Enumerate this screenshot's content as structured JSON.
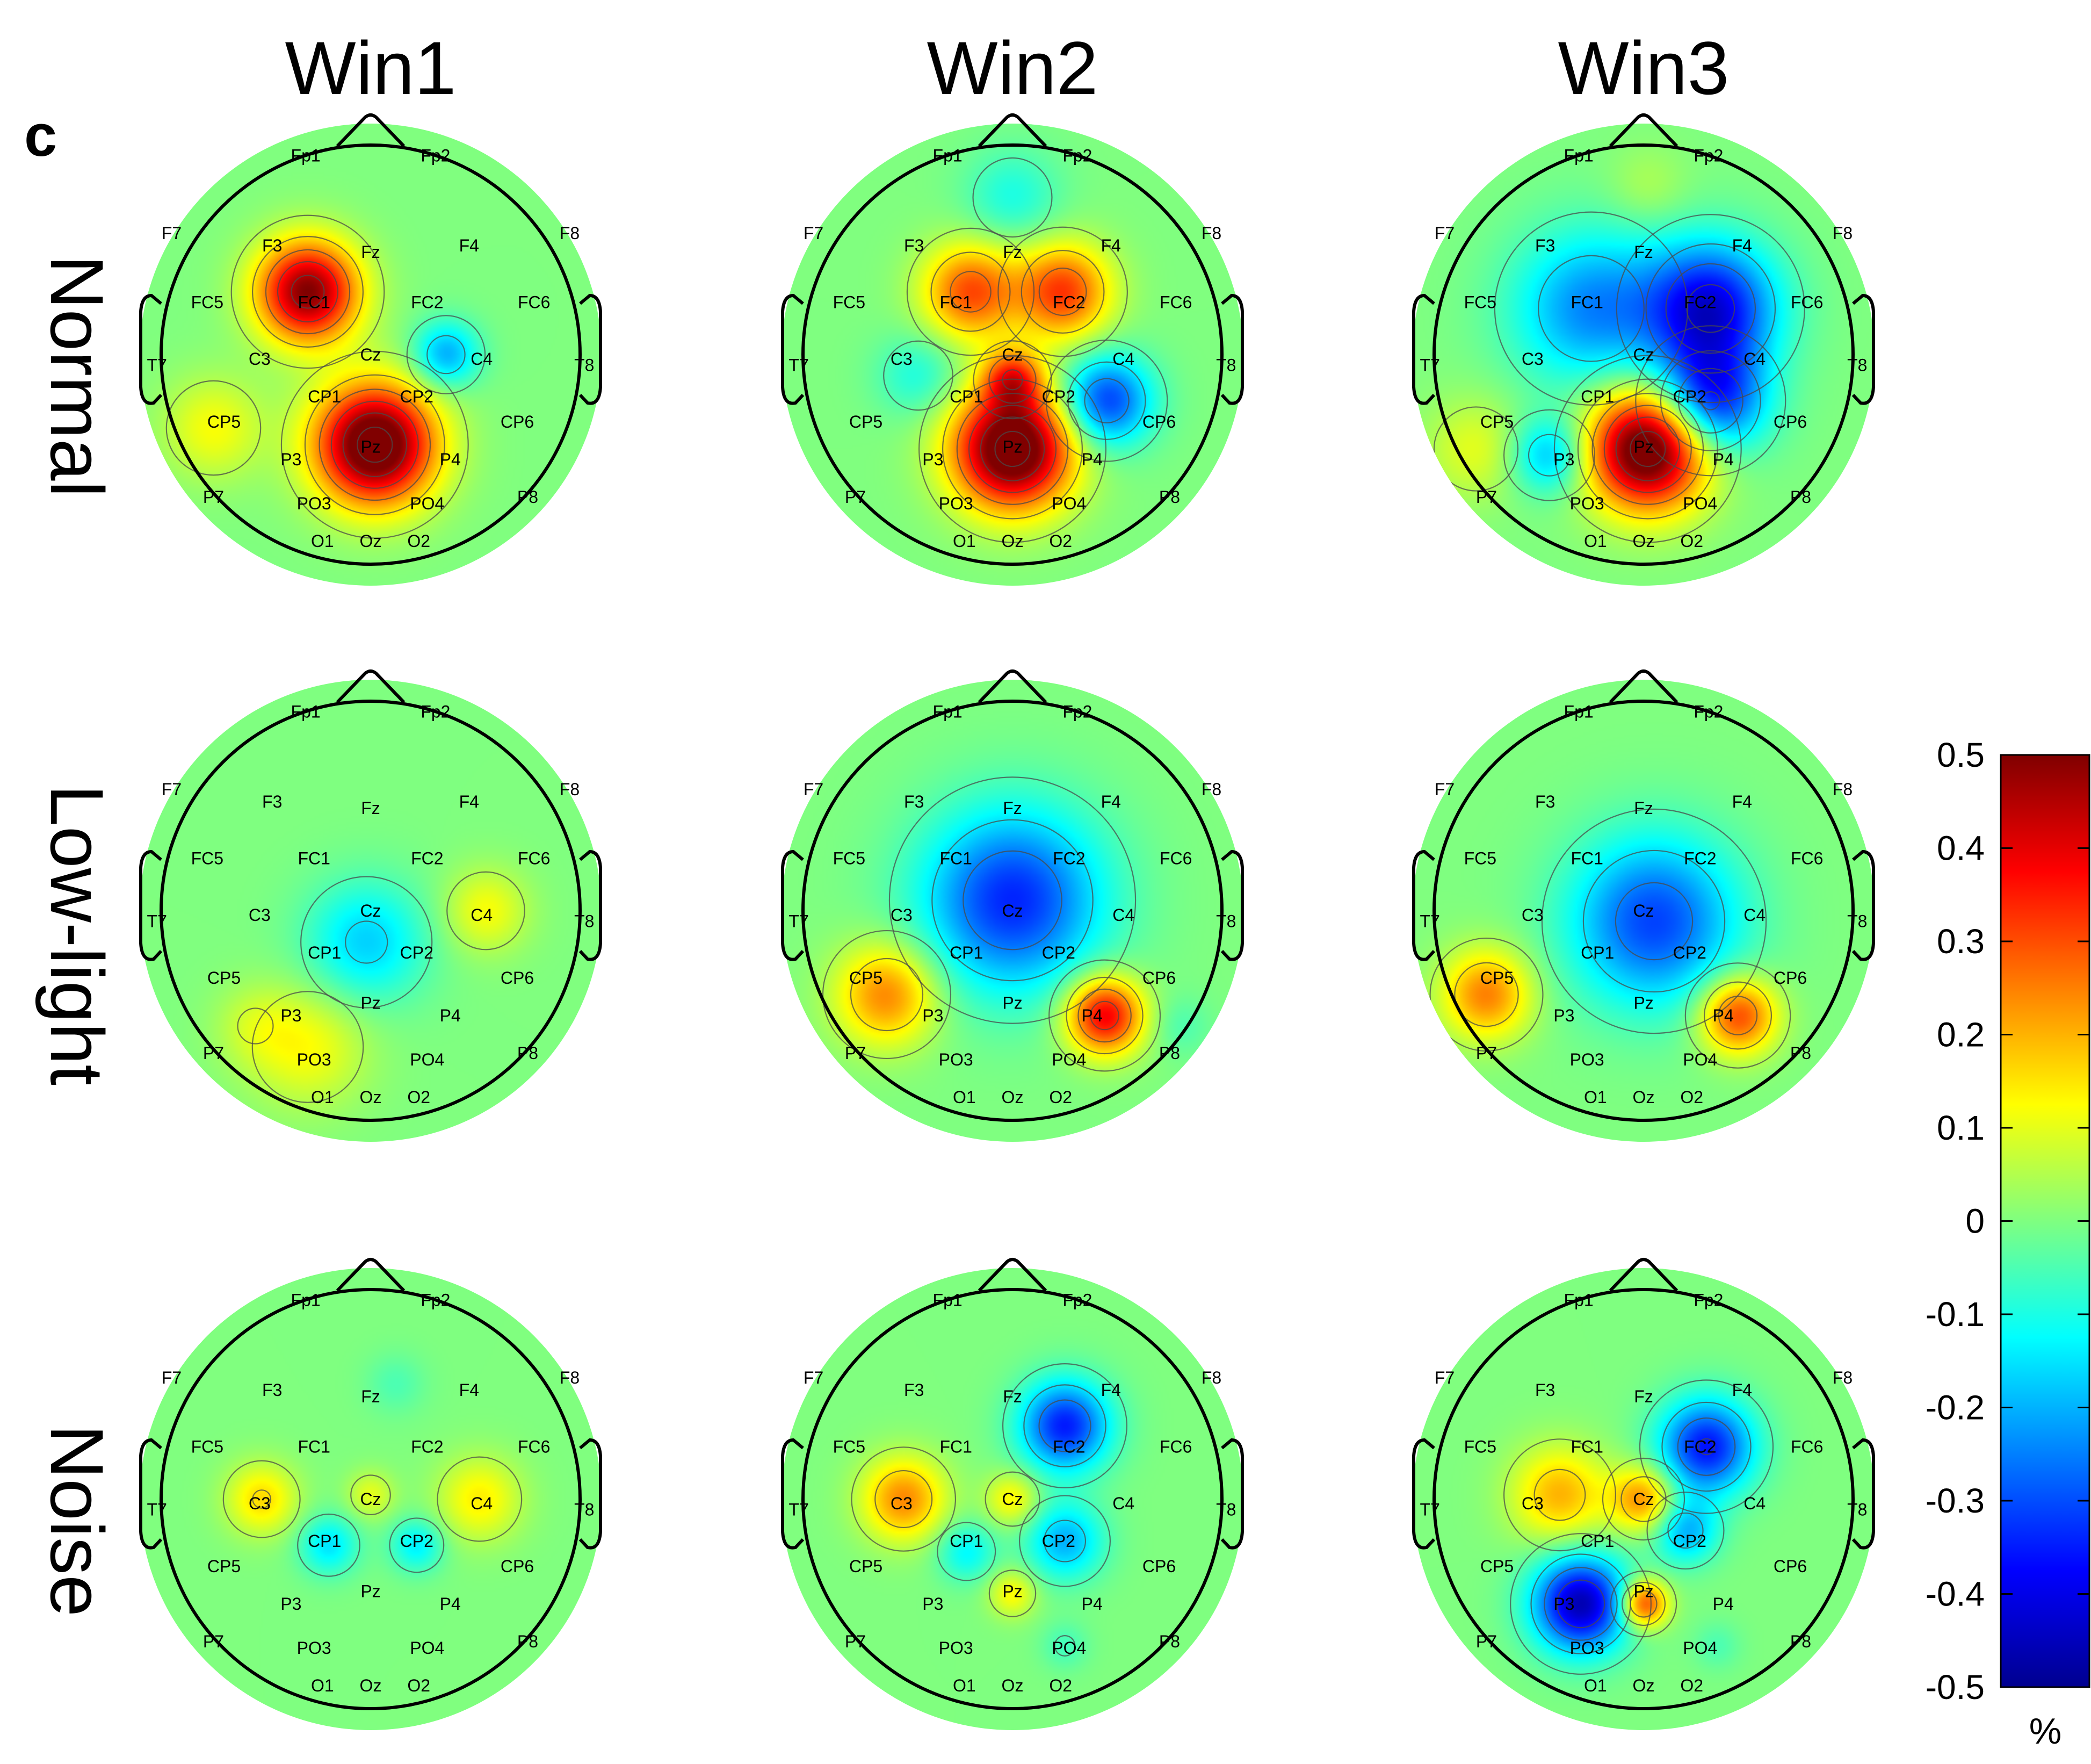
{
  "figure": {
    "panel_letter": "c",
    "column_titles": [
      "Win1",
      "Win2",
      "Win3"
    ],
    "row_titles": [
      "Normal",
      "Low-light",
      "Noise"
    ]
  },
  "chart_data": {
    "type": "heatmap",
    "title": "",
    "columns": [
      "Win1",
      "Win2",
      "Win3"
    ],
    "rows": [
      "Normal",
      "Low-light",
      "Noise"
    ],
    "colorbar": {
      "colormap": "jet",
      "range": [
        -0.5,
        0.5
      ],
      "ticks": [
        "0.5",
        "0.4",
        "0.3",
        "0.2",
        "0.1",
        "0",
        "-0.1",
        "-0.2",
        "-0.3",
        "-0.4",
        "-0.5"
      ],
      "tick_values": [
        0.5,
        0.4,
        0.3,
        0.2,
        0.1,
        0,
        -0.1,
        -0.2,
        -0.3,
        -0.4,
        -0.5
      ],
      "unit": "%"
    },
    "electrodes": [
      {
        "name": "Fp1",
        "pos": [
          -0.31,
          -0.95
        ]
      },
      {
        "name": "Fp2",
        "pos": [
          0.31,
          -0.95
        ]
      },
      {
        "name": "F7",
        "pos": [
          -0.95,
          -0.58
        ]
      },
      {
        "name": "F3",
        "pos": [
          -0.47,
          -0.52
        ]
      },
      {
        "name": "Fz",
        "pos": [
          0.0,
          -0.49
        ]
      },
      {
        "name": "F4",
        "pos": [
          0.47,
          -0.52
        ]
      },
      {
        "name": "F8",
        "pos": [
          0.95,
          -0.58
        ]
      },
      {
        "name": "FC5",
        "pos": [
          -0.78,
          -0.25
        ]
      },
      {
        "name": "FC1",
        "pos": [
          -0.27,
          -0.25
        ]
      },
      {
        "name": "FC2",
        "pos": [
          0.27,
          -0.25
        ]
      },
      {
        "name": "FC6",
        "pos": [
          0.78,
          -0.25
        ]
      },
      {
        "name": "T7",
        "pos": [
          -1.02,
          0.05
        ]
      },
      {
        "name": "C3",
        "pos": [
          -0.53,
          0.02
        ]
      },
      {
        "name": "Cz",
        "pos": [
          0.0,
          0.0
        ]
      },
      {
        "name": "C4",
        "pos": [
          0.53,
          0.02
        ]
      },
      {
        "name": "T8",
        "pos": [
          1.02,
          0.05
        ]
      },
      {
        "name": "CP5",
        "pos": [
          -0.7,
          0.32
        ]
      },
      {
        "name": "CP1",
        "pos": [
          -0.22,
          0.2
        ]
      },
      {
        "name": "CP2",
        "pos": [
          0.22,
          0.2
        ]
      },
      {
        "name": "CP6",
        "pos": [
          0.7,
          0.32
        ]
      },
      {
        "name": "P7",
        "pos": [
          -0.75,
          0.68
        ]
      },
      {
        "name": "P3",
        "pos": [
          -0.38,
          0.5
        ]
      },
      {
        "name": "Pz",
        "pos": [
          0.0,
          0.44
        ]
      },
      {
        "name": "P4",
        "pos": [
          0.38,
          0.5
        ]
      },
      {
        "name": "P8",
        "pos": [
          0.75,
          0.68
        ]
      },
      {
        "name": "PO3",
        "pos": [
          -0.27,
          0.71
        ]
      },
      {
        "name": "PO4",
        "pos": [
          0.27,
          0.71
        ]
      },
      {
        "name": "O1",
        "pos": [
          -0.23,
          0.89
        ]
      },
      {
        "name": "Oz",
        "pos": [
          0.0,
          0.89
        ]
      },
      {
        "name": "O2",
        "pos": [
          0.23,
          0.89
        ]
      }
    ],
    "maps": [
      {
        "row": "Normal",
        "column": "Win1",
        "sources": [
          {
            "x": -0.3,
            "y": -0.3,
            "a": 0.5,
            "s": 0.17
          },
          {
            "x": 0.02,
            "y": 0.43,
            "a": 0.6,
            "s": 0.2
          },
          {
            "x": 0.36,
            "y": 0.0,
            "a": -0.21,
            "s": 0.11
          },
          {
            "x": -0.75,
            "y": 0.35,
            "a": 0.12,
            "s": 0.17
          }
        ]
      },
      {
        "row": "Normal",
        "column": "Win2",
        "sources": [
          {
            "x": -0.2,
            "y": -0.3,
            "a": 0.3,
            "s": 0.16
          },
          {
            "x": 0.24,
            "y": -0.3,
            "a": 0.32,
            "s": 0.16
          },
          {
            "x": 0.0,
            "y": 0.45,
            "a": 0.6,
            "s": 0.2
          },
          {
            "x": 0.0,
            "y": 0.12,
            "a": 0.28,
            "s": 0.1
          },
          {
            "x": 0.45,
            "y": 0.22,
            "a": -0.32,
            "s": 0.15
          },
          {
            "x": -0.45,
            "y": 0.1,
            "a": -0.1,
            "s": 0.14
          },
          {
            "x": 0.0,
            "y": -0.75,
            "a": -0.1,
            "s": 0.16
          }
        ]
      },
      {
        "row": "Normal",
        "column": "Win3",
        "sources": [
          {
            "x": -0.25,
            "y": -0.22,
            "a": -0.24,
            "s": 0.26
          },
          {
            "x": 0.32,
            "y": -0.22,
            "a": -0.4,
            "s": 0.22
          },
          {
            "x": 0.32,
            "y": 0.22,
            "a": -0.36,
            "s": 0.18
          },
          {
            "x": 0.02,
            "y": 0.45,
            "a": 0.6,
            "s": 0.2
          },
          {
            "x": -0.45,
            "y": 0.48,
            "a": -0.2,
            "s": 0.13
          },
          {
            "x": -0.8,
            "y": 0.45,
            "a": 0.1,
            "s": 0.17
          },
          {
            "x": 0.02,
            "y": -0.8,
            "a": 0.05,
            "s": 0.13
          }
        ]
      },
      {
        "row": "Low-light",
        "column": "Win1",
        "sources": [
          {
            "x": -0.02,
            "y": 0.15,
            "a": -0.17,
            "s": 0.2
          },
          {
            "x": 0.55,
            "y": 0.0,
            "a": 0.12,
            "s": 0.14
          },
          {
            "x": -0.3,
            "y": 0.65,
            "a": 0.12,
            "s": 0.2
          },
          {
            "x": -0.55,
            "y": 0.55,
            "a": 0.06,
            "s": 0.14
          }
        ]
      },
      {
        "row": "Low-light",
        "column": "Win2",
        "sources": [
          {
            "x": 0.0,
            "y": -0.05,
            "a": -0.34,
            "s": 0.3
          },
          {
            "x": -0.6,
            "y": 0.4,
            "a": 0.25,
            "s": 0.17
          },
          {
            "x": 0.44,
            "y": 0.5,
            "a": 0.4,
            "s": 0.13
          },
          {
            "x": 0.8,
            "y": 0.55,
            "a": -0.05,
            "s": 0.1
          }
        ]
      },
      {
        "row": "Low-light",
        "column": "Win3",
        "sources": [
          {
            "x": 0.05,
            "y": 0.05,
            "a": -0.31,
            "s": 0.28
          },
          {
            "x": -0.75,
            "y": 0.4,
            "a": 0.25,
            "s": 0.15
          },
          {
            "x": 0.45,
            "y": 0.5,
            "a": 0.32,
            "s": 0.13
          }
        ]
      },
      {
        "row": "Noise",
        "column": "Win1",
        "sources": [
          {
            "x": -0.52,
            "y": 0.0,
            "a": 0.16,
            "s": 0.12
          },
          {
            "x": 0.52,
            "y": 0.0,
            "a": 0.14,
            "s": 0.14
          },
          {
            "x": 0.0,
            "y": -0.02,
            "a": 0.1,
            "s": 0.08
          },
          {
            "x": -0.2,
            "y": 0.22,
            "a": -0.15,
            "s": 0.1
          },
          {
            "x": 0.22,
            "y": 0.22,
            "a": -0.14,
            "s": 0.09
          },
          {
            "x": 0.12,
            "y": -0.55,
            "a": -0.05,
            "s": 0.1
          }
        ]
      },
      {
        "row": "Noise",
        "column": "Win2",
        "sources": [
          {
            "x": 0.25,
            "y": -0.35,
            "a": -0.35,
            "s": 0.15
          },
          {
            "x": 0.25,
            "y": 0.2,
            "a": -0.2,
            "s": 0.13
          },
          {
            "x": -0.52,
            "y": 0.0,
            "a": 0.24,
            "s": 0.14
          },
          {
            "x": 0.0,
            "y": 0.0,
            "a": 0.14,
            "s": 0.09
          },
          {
            "x": -0.22,
            "y": 0.25,
            "a": -0.13,
            "s": 0.1
          },
          {
            "x": 0.0,
            "y": 0.45,
            "a": 0.13,
            "s": 0.08
          },
          {
            "x": 0.25,
            "y": 0.7,
            "a": -0.06,
            "s": 0.08
          }
        ]
      },
      {
        "row": "Noise",
        "column": "Win3",
        "sources": [
          {
            "x": -0.4,
            "y": -0.02,
            "a": 0.2,
            "s": 0.16
          },
          {
            "x": 0.0,
            "y": 0.0,
            "a": 0.24,
            "s": 0.11
          },
          {
            "x": 0.3,
            "y": -0.25,
            "a": -0.36,
            "s": 0.16
          },
          {
            "x": 0.2,
            "y": 0.15,
            "a": -0.2,
            "s": 0.11
          },
          {
            "x": -0.3,
            "y": 0.5,
            "a": -0.45,
            "s": 0.16
          },
          {
            "x": 0.0,
            "y": 0.5,
            "a": 0.34,
            "s": 0.08
          },
          {
            "x": 0.35,
            "y": 0.7,
            "a": -0.05,
            "s": 0.08
          }
        ]
      }
    ]
  }
}
